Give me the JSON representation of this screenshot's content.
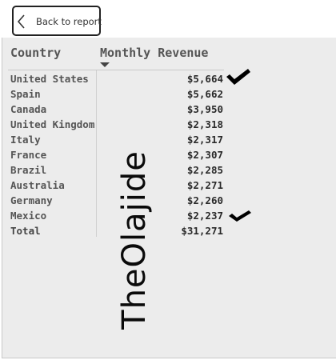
{
  "toolbar": {
    "back_label": "Back to report",
    "back_icon": "chevron-left-icon"
  },
  "table": {
    "headers": {
      "country": "Country",
      "revenue": "Monthly Revenue"
    },
    "sort_icon": "sort-descending-icon",
    "rows": [
      {
        "country": "United States",
        "revenue": "$5,664"
      },
      {
        "country": "Spain",
        "revenue": "$5,662"
      },
      {
        "country": "Canada",
        "revenue": "$3,950"
      },
      {
        "country": "United Kingdom",
        "revenue": "$2,318"
      },
      {
        "country": "Italy",
        "revenue": "$2,317"
      },
      {
        "country": "France",
        "revenue": "$2,307"
      },
      {
        "country": "Brazil",
        "revenue": "$2,285"
      },
      {
        "country": "Australia",
        "revenue": "$2,271"
      },
      {
        "country": "Germany",
        "revenue": "$2,260"
      },
      {
        "country": "Mexico",
        "revenue": "$2,237"
      }
    ],
    "total": {
      "label": "Total",
      "value": "$31,271"
    }
  },
  "annotations": {
    "checkmark_icon": "checkmark-icon",
    "watermark_text": "TheOlajide"
  },
  "colors": {
    "canvas_bg": "#ececec",
    "text": "#555555",
    "checkmark": "#000000"
  }
}
